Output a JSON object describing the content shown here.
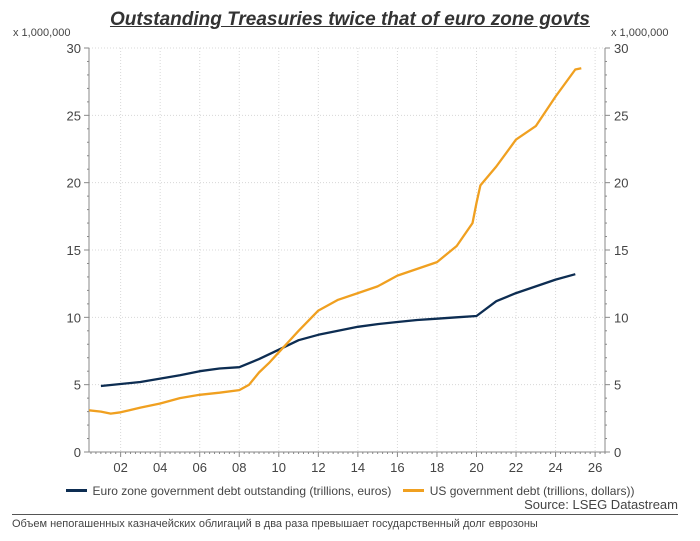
{
  "chart_data": {
    "type": "line",
    "title": "Outstanding Treasuries twice that of euro zone govts",
    "y_unit_left": "x 1,000,000",
    "y_unit_right": "x 1,000,000",
    "xlabel": "",
    "ylabel": "",
    "xlim": [
      2000.4,
      2026.5
    ],
    "ylim": [
      0,
      30
    ],
    "x_ticks": [
      2002,
      2004,
      2006,
      2008,
      2010,
      2012,
      2014,
      2016,
      2018,
      2020,
      2022,
      2024,
      2026
    ],
    "x_tick_labels": [
      "02",
      "04",
      "06",
      "08",
      "10",
      "12",
      "14",
      "16",
      "18",
      "20",
      "22",
      "24",
      "26"
    ],
    "y_ticks": [
      0,
      5,
      10,
      15,
      20,
      25,
      30
    ],
    "y_tick_labels": [
      "0",
      "5",
      "10",
      "15",
      "20",
      "25",
      "30"
    ],
    "grid": true,
    "legend_position": "bottom",
    "series": [
      {
        "name": "Euro zone government debt outstanding (trillions, euros)",
        "color": "#0d2d52",
        "x": [
          2001.0,
          2003.0,
          2005.0,
          2006.0,
          2007.0,
          2008.0,
          2009.0,
          2010.0,
          2011.0,
          2012.0,
          2013.0,
          2014.0,
          2015.0,
          2016.0,
          2017.0,
          2018.0,
          2019.0,
          2020.0,
          2021.0,
          2022.0,
          2023.0,
          2024.0,
          2025.0
        ],
        "values": [
          4.9,
          5.2,
          5.7,
          6.0,
          6.2,
          6.3,
          6.9,
          7.6,
          8.3,
          8.7,
          9.0,
          9.3,
          9.5,
          9.65,
          9.8,
          9.9,
          10.0,
          10.1,
          11.2,
          11.8,
          12.3,
          12.8,
          13.2
        ]
      },
      {
        "name": "US government debt (trillions, dollars))",
        "color": "#f0a020",
        "x": [
          2000.4,
          2001.0,
          2001.5,
          2002.0,
          2003.0,
          2004.0,
          2005.0,
          2006.0,
          2007.0,
          2008.0,
          2008.5,
          2009.0,
          2009.5,
          2010.0,
          2010.5,
          2011.0,
          2012.0,
          2013.0,
          2014.0,
          2015.0,
          2016.0,
          2017.0,
          2018.0,
          2019.0,
          2019.8,
          2020.0,
          2020.2,
          2021.0,
          2022.0,
          2023.0,
          2024.0,
          2025.0,
          2025.3
        ],
        "values": [
          3.1,
          3.0,
          2.85,
          2.95,
          3.3,
          3.6,
          4.0,
          4.25,
          4.4,
          4.6,
          5.0,
          5.9,
          6.6,
          7.4,
          8.2,
          9.0,
          10.5,
          11.3,
          11.8,
          12.3,
          13.1,
          13.6,
          14.1,
          15.3,
          17.0,
          18.5,
          19.8,
          21.2,
          23.2,
          24.2,
          26.4,
          28.4,
          28.5
        ]
      }
    ],
    "source": "Source: LSEG Datastream",
    "caption": "Объем непогашенных казначейских облигаций в два раза превышает государственный долг еврозоны"
  }
}
